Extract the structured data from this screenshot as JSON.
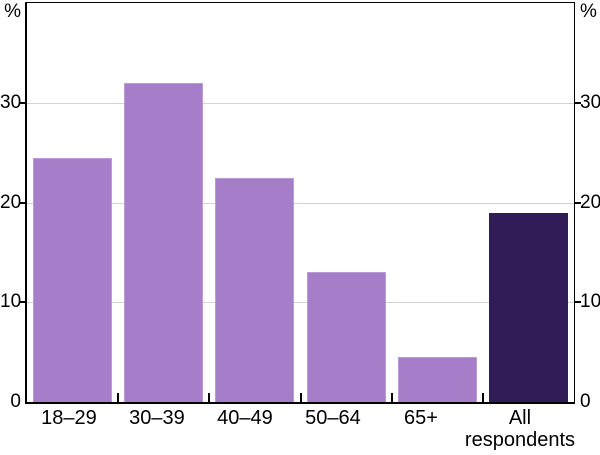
{
  "chart_data": {
    "type": "bar",
    "categories": [
      "18–29",
      "30–39",
      "40–49",
      "50–64",
      "65+",
      "All respondents"
    ],
    "values": [
      24.5,
      32,
      22.5,
      13,
      4.5,
      19
    ],
    "unit_left": "%",
    "unit_right": "%",
    "ylim": [
      0,
      40
    ],
    "y_ticks": [
      0,
      10,
      20,
      30
    ],
    "gridline_values": [
      10,
      20,
      30
    ],
    "grid": "horizontal",
    "axis_sides": "both-left-and-right",
    "bar_colors": [
      "#a57dc8",
      "#a57dc8",
      "#a57dc8",
      "#a57dc8",
      "#a57dc8",
      "#321c57"
    ],
    "bar_edge_colors": [
      "#bb9ad8",
      "#bb9ad8",
      "#bb9ad8",
      "#bb9ad8",
      "#bb9ad8",
      "#321c57"
    ],
    "gridline_color": "#d3d3d3",
    "axis_color": "#000000",
    "background_color": "#ffffff"
  }
}
